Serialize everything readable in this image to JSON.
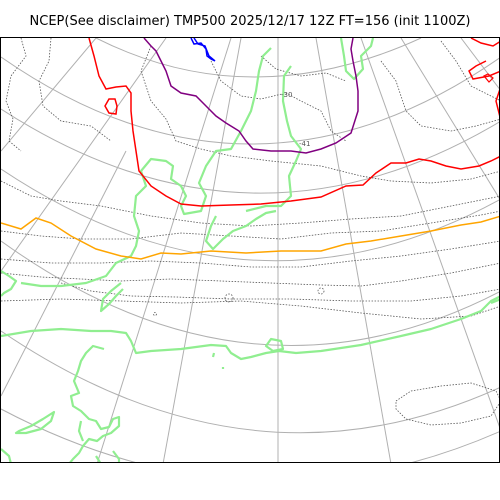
{
  "title": "NCEP(See disclaimer) TMP500 2025/12/17 12Z FT=156 (init 1100Z)",
  "map": {
    "projection": "polar-stereographic",
    "colors": {
      "graticule": "#b0b0b0",
      "coastline": "#90ee90",
      "contour": "#555555",
      "isotherm_cold_1": "#0000ff",
      "isotherm_cold_2": "#800080",
      "isotherm_mid": "#ff0000",
      "isotherm_warm": "#ffa500"
    },
    "labels": {
      "contour_tag_1": "-41",
      "contour_tag_2": "-30"
    }
  }
}
